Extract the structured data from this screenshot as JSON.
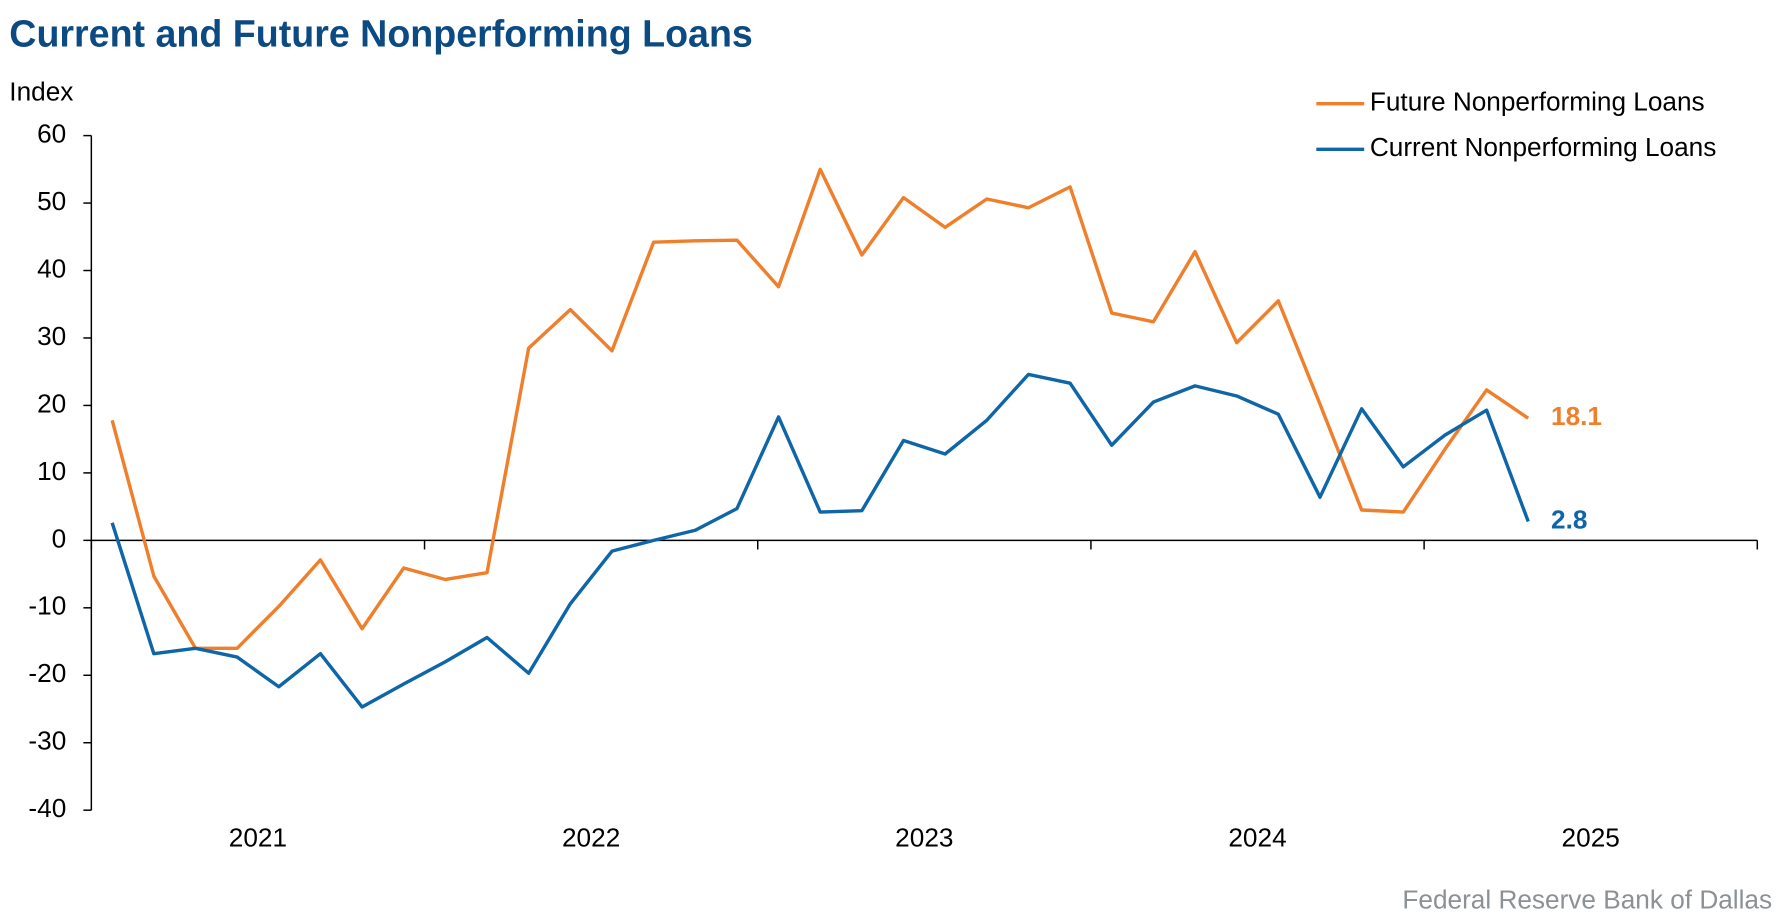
{
  "chart_data": {
    "type": "line",
    "title": "Current and Future Nonperforming Loans",
    "y_label": "Index",
    "source": "Federal Reserve Bank of Dallas",
    "legend": "top-right",
    "xlim": [
      2021,
      2026
    ],
    "xticks": [
      {
        "value": 2021,
        "label": "2021"
      },
      {
        "value": 2022,
        "label": "2022"
      },
      {
        "value": 2023,
        "label": "2023"
      },
      {
        "value": 2024,
        "label": "2024"
      },
      {
        "value": 2025,
        "label": "2025"
      }
    ],
    "ylim": [
      -40,
      60
    ],
    "yticks": [
      -40,
      -30,
      -20,
      -10,
      0,
      10,
      20,
      30,
      40,
      50,
      60
    ],
    "x": [
      2021.0625,
      2021.1875,
      2021.3125,
      2021.4375,
      2021.5625,
      2021.6875,
      2021.8125,
      2021.9375,
      2022.0625,
      2022.1875,
      2022.3125,
      2022.4375,
      2022.5625,
      2022.6875,
      2022.8125,
      2022.9375,
      2023.0625,
      2023.1875,
      2023.3125,
      2023.4375,
      2023.5625,
      2023.6875,
      2023.8125,
      2023.9375,
      2024.0625,
      2024.1875,
      2024.3125,
      2024.4375,
      2024.5625,
      2024.6875,
      2024.8125,
      2024.9375,
      2025.0625,
      2025.1875,
      2025.3125
    ],
    "series": [
      {
        "name": "Future Nonperforming Loans",
        "color": "#f07f2c",
        "values": [
          17.8,
          -5.3,
          -16,
          -16,
          -9.8,
          -2.9,
          -13.1,
          -4.1,
          -5.8,
          -4.8,
          28.5,
          34.2,
          28.1,
          44.2,
          44.4,
          44.5,
          37.6,
          55,
          42.3,
          50.8,
          46.4,
          50.6,
          49.3,
          52.4,
          33.7,
          32.4,
          42.8,
          29.3,
          35.5,
          20.2,
          4.5,
          4.2,
          13.5,
          22.3,
          18.1
        ]
      },
      {
        "name": "Current Nonperforming Loans",
        "color": "#0e66a8",
        "values": [
          2.6,
          -16.8,
          -16,
          -17.3,
          -21.7,
          -16.8,
          -24.7,
          -21.3,
          -18,
          -14.4,
          -19.7,
          -9.4,
          -1.6,
          0,
          1.5,
          4.7,
          18.3,
          4.2,
          4.4,
          14.8,
          12.8,
          17.8,
          24.6,
          23.3,
          14.1,
          20.5,
          22.9,
          21.4,
          18.7,
          6.4,
          19.5,
          10.9,
          15.6,
          19.3,
          2.8
        ]
      }
    ]
  }
}
